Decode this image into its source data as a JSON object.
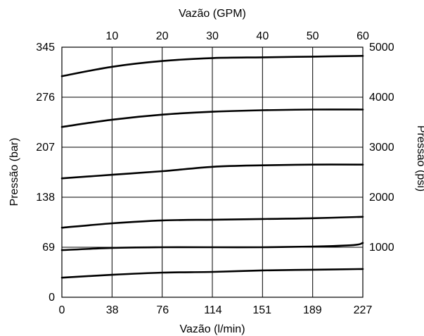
{
  "chart_data": {
    "type": "line",
    "xlabel": "Vazão (l/min)",
    "x2label": "Vazão (GPM)",
    "ylabel": "Pressão (bar)",
    "y2label": "Pressão (psi)",
    "xlim": [
      0,
      227
    ],
    "ylim": [
      0,
      345
    ],
    "x2lim": [
      0,
      60
    ],
    "y2lim": [
      0,
      5000
    ],
    "grid": true,
    "x_ticks": [
      "0",
      "38",
      "76",
      "114",
      "151",
      "189",
      "227"
    ],
    "x_tick_values": [
      0,
      38,
      76,
      114,
      151,
      189,
      227
    ],
    "x2_ticks": [
      "10",
      "20",
      "30",
      "40",
      "50",
      "60"
    ],
    "x2_tick_values": [
      10,
      20,
      30,
      40,
      50,
      60
    ],
    "y_ticks": [
      "0",
      "69",
      "138",
      "207",
      "276",
      "345"
    ],
    "y_tick_values": [
      0,
      69,
      138,
      207,
      276,
      345
    ],
    "y2_ticks": [
      "1000",
      "2000",
      "3000",
      "4000",
      "5000"
    ],
    "y2_tick_values": [
      1000,
      2000,
      3000,
      4000,
      5000
    ],
    "series": [
      {
        "x": [
          0,
          38,
          76,
          114,
          151,
          189,
          227
        ],
        "y": [
          27,
          31,
          34,
          35,
          37,
          38,
          39
        ]
      },
      {
        "x": [
          0,
          38,
          76,
          114,
          151,
          189,
          220,
          227
        ],
        "y": [
          65,
          68,
          69,
          69,
          69,
          70,
          72,
          75
        ]
      },
      {
        "x": [
          0,
          38,
          76,
          114,
          151,
          189,
          227
        ],
        "y": [
          96,
          102,
          106,
          107,
          108,
          109,
          111
        ]
      },
      {
        "x": [
          0,
          38,
          76,
          114,
          151,
          189,
          227
        ],
        "y": [
          164,
          169,
          174,
          180,
          182,
          183,
          183
        ]
      },
      {
        "x": [
          0,
          38,
          76,
          114,
          151,
          189,
          227
        ],
        "y": [
          235,
          245,
          252,
          256,
          258,
          259,
          259
        ]
      },
      {
        "x": [
          0,
          38,
          76,
          114,
          151,
          189,
          227
        ],
        "y": [
          305,
          318,
          326,
          330,
          331,
          332,
          333
        ]
      }
    ]
  }
}
